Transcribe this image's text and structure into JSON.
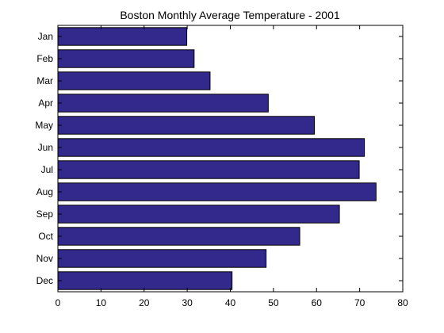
{
  "chart_data": {
    "type": "bar",
    "orientation": "horizontal",
    "title": "Boston Monthly Average Temperature - 2001",
    "xlabel": "",
    "ylabel": "",
    "categories": [
      "Jan",
      "Feb",
      "Mar",
      "Apr",
      "May",
      "Jun",
      "Jul",
      "Aug",
      "Sep",
      "Oct",
      "Nov",
      "Dec"
    ],
    "values": [
      29.9,
      31.6,
      35.3,
      48.8,
      59.5,
      71.1,
      69.9,
      73.8,
      65.3,
      56.1,
      48.3,
      40.4
    ],
    "xlim": [
      0,
      80
    ],
    "xticks": [
      0,
      10,
      20,
      30,
      40,
      50,
      60,
      70,
      80
    ],
    "grid": false,
    "legend": "none",
    "bar_color": "#33298c"
  }
}
